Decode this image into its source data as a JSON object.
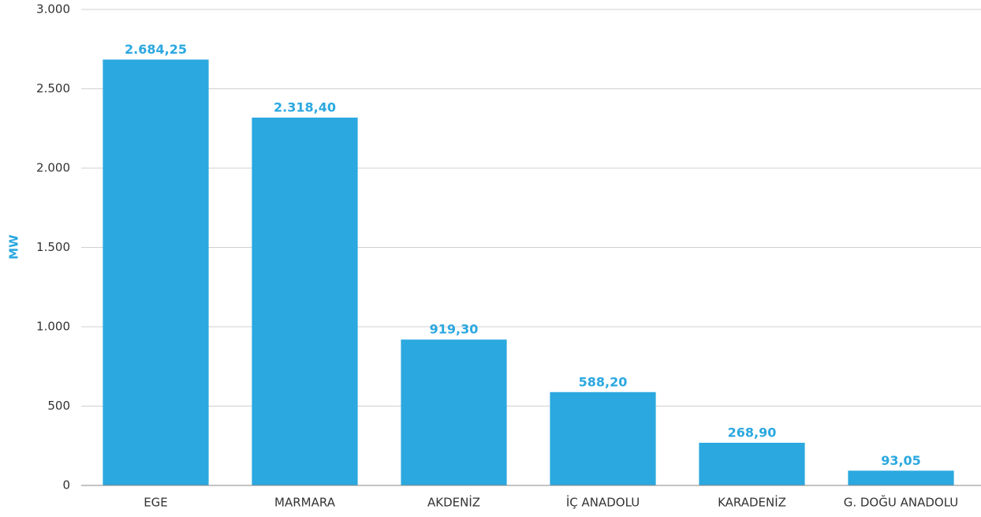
{
  "chart_data": {
    "type": "bar",
    "y_label": "MW",
    "categories": [
      "EGE",
      "MARMARA",
      "AKDENİZ",
      "İÇ ANADOLU",
      "KARADENİZ",
      "G. DOĞU ANADOLU"
    ],
    "values": [
      2684.25,
      2318.4,
      919.3,
      588.2,
      268.9,
      93.05
    ],
    "value_labels": [
      "2.684,25",
      "2.318,40",
      "919,30",
      "588,20",
      "268,90",
      "93,05"
    ],
    "color": "#2ba8e0",
    "ylim": [
      0,
      3000
    ],
    "yticks": [
      0,
      500,
      {
        "value": 1000,
        "label": "1.000"
      },
      {
        "value": 1500,
        "label": "1.500"
      },
      {
        "value": 2000,
        "label": "2.000"
      },
      {
        "value": 2500,
        "label": "2.500"
      },
      {
        "value": 3000,
        "label": "3.000"
      }
    ],
    "grid": true
  }
}
